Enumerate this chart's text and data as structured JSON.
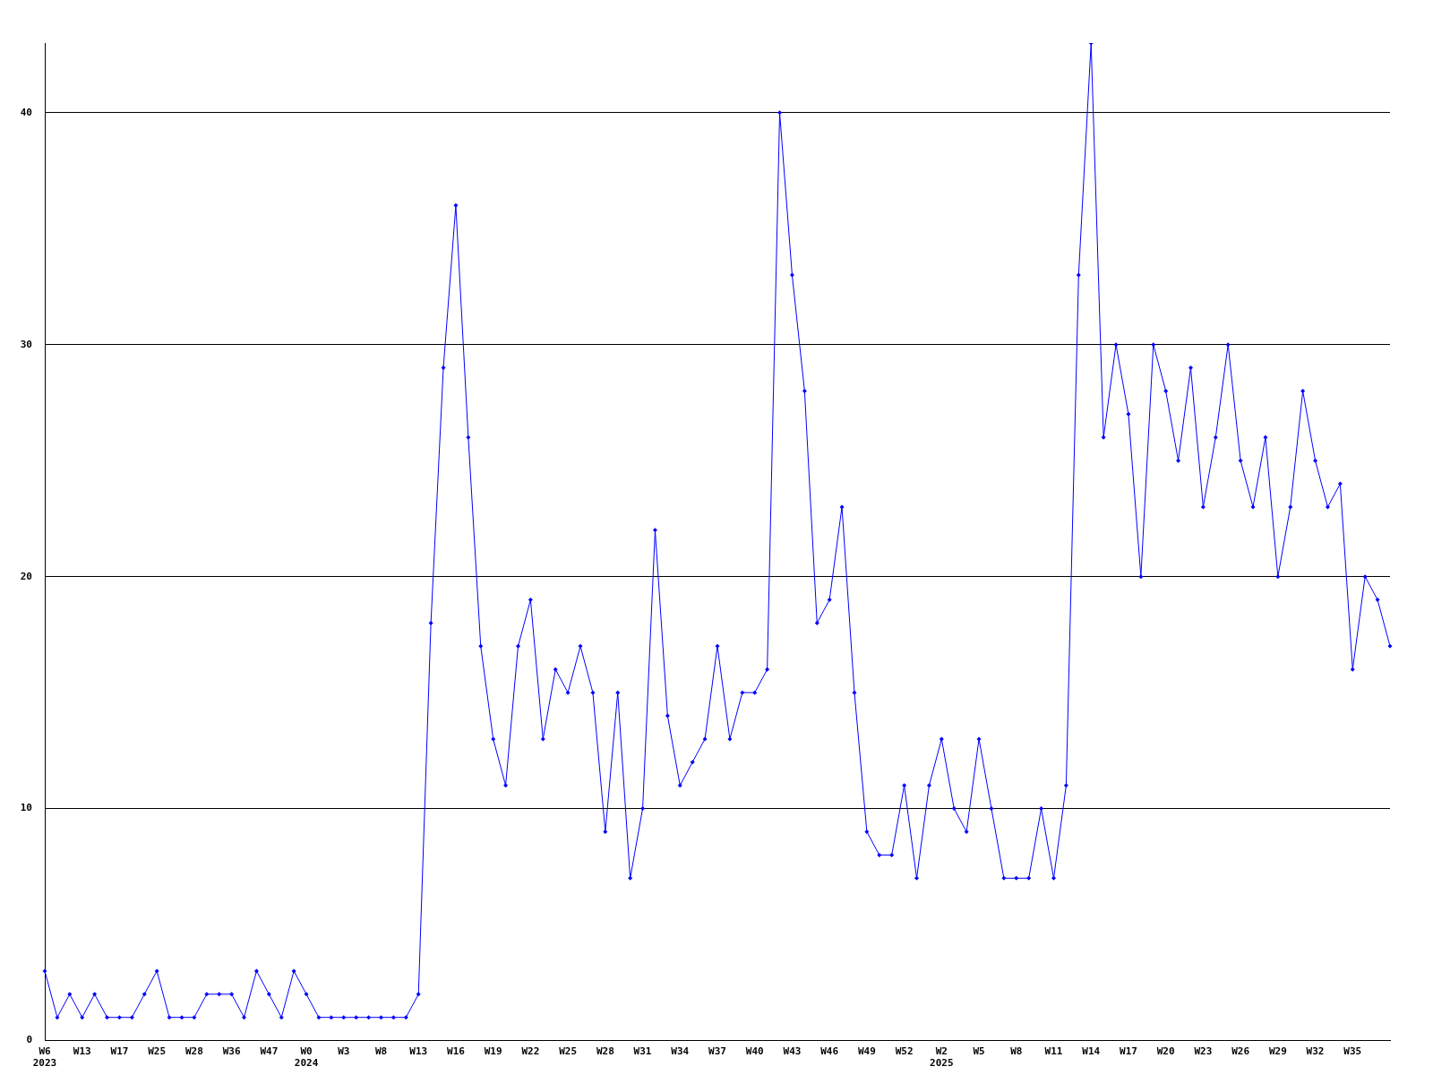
{
  "chart_data": {
    "type": "line",
    "categories": [
      "W6\n2023",
      null,
      null,
      "W13",
      null,
      null,
      "W17",
      null,
      null,
      "W25",
      null,
      null,
      "W28",
      null,
      null,
      "W36",
      null,
      null,
      "W47",
      null,
      null,
      "W0\n2024",
      null,
      null,
      "W3",
      null,
      null,
      "W8",
      null,
      null,
      "W13",
      null,
      null,
      "W16",
      null,
      null,
      "W19",
      null,
      null,
      "W22",
      null,
      null,
      "W25",
      null,
      null,
      "W28",
      null,
      null,
      "W31",
      null,
      null,
      "W34",
      null,
      null,
      "W37",
      null,
      null,
      "W40",
      null,
      null,
      "W43",
      null,
      null,
      "W46",
      null,
      null,
      "W49",
      null,
      null,
      "W52",
      null,
      null,
      "W2\n2025",
      null,
      null,
      "W5",
      null,
      null,
      "W8",
      null,
      null,
      "W11",
      null,
      null,
      "W14",
      null,
      null,
      "W17",
      null,
      null,
      "W20",
      null,
      null,
      "W23",
      null,
      null,
      "W26",
      null,
      null,
      "W29",
      null,
      null,
      "W32",
      null,
      null,
      "W35",
      null,
      null,
      null
    ],
    "series": [
      {
        "color": "#0000ff",
        "values": [
          3,
          1,
          2,
          1,
          2,
          1,
          1,
          1,
          2,
          3,
          1,
          1,
          1,
          2,
          2,
          2,
          1,
          3,
          2,
          1,
          3,
          2,
          1,
          1,
          1,
          1,
          1,
          1,
          1,
          1,
          2,
          18,
          29,
          36,
          26,
          17,
          13,
          11,
          17,
          19,
          13,
          16,
          15,
          17,
          15,
          9,
          15,
          7,
          10,
          22,
          14,
          11,
          12,
          13,
          17,
          13,
          15,
          15,
          16,
          40,
          33,
          28,
          18,
          19,
          23,
          15,
          9,
          8,
          8,
          11,
          7,
          11,
          13,
          10,
          9,
          13,
          10,
          7,
          7,
          7,
          10,
          7,
          11,
          33,
          43,
          26,
          30,
          27,
          20,
          30,
          28,
          25,
          29,
          23,
          26,
          30,
          25,
          23,
          26,
          20,
          23,
          28,
          25,
          23,
          24,
          16,
          20,
          19,
          17
        ]
      }
    ],
    "ylim": [
      0,
      43
    ],
    "yticks": [
      0,
      10,
      20,
      30,
      40
    ],
    "grid": "y",
    "legend": false,
    "marker": "diamond",
    "line_style": "solid"
  }
}
